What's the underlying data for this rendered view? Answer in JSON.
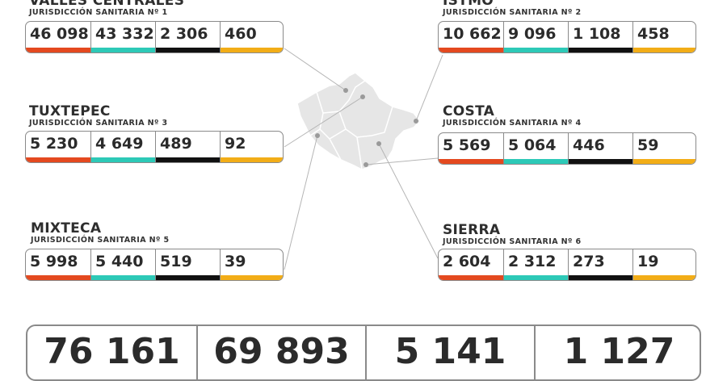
{
  "regions": [
    {
      "name": "VALLES CENTRALES",
      "sub": "JURISDICCIÓN SANITARIA Nº 1",
      "values": [
        "46 098",
        "43 332",
        "2 306",
        "460"
      ]
    },
    {
      "name": "ISTMO",
      "sub": "JURISDICCIÓN SANITARIA Nº 2",
      "values": [
        "10 662",
        "9 096",
        "1 108",
        "458"
      ]
    },
    {
      "name": "TUXTEPEC",
      "sub": "JURISDICCIÓN SANITARIA Nº 3",
      "values": [
        "5 230",
        "4 649",
        "489",
        "92"
      ]
    },
    {
      "name": "COSTA",
      "sub": "JURISDICCIÓN SANITARIA Nº 4",
      "values": [
        "5 569",
        "5 064",
        "446",
        "59"
      ]
    },
    {
      "name": "MIXTECA",
      "sub": "JURISDICCIÓN SANITARIA Nº 5",
      "values": [
        "5 998",
        "5 440",
        "519",
        "39"
      ]
    },
    {
      "name": "SIERRA",
      "sub": "JURISDICCIÓN SANITARIA Nº 6",
      "values": [
        "2 604",
        "2 312",
        "273",
        "19"
      ]
    }
  ],
  "totals": [
    "76 161",
    "69 893",
    "5 141",
    "1 127"
  ],
  "colors": {
    "col1": "#e4491f",
    "col2": "#2dc9b7",
    "col3": "#111111",
    "col4": "#f2ad17",
    "map_fill": "#e6e6e6",
    "map_stroke": "#ffffff",
    "leader_line": "#b5b5b5"
  }
}
